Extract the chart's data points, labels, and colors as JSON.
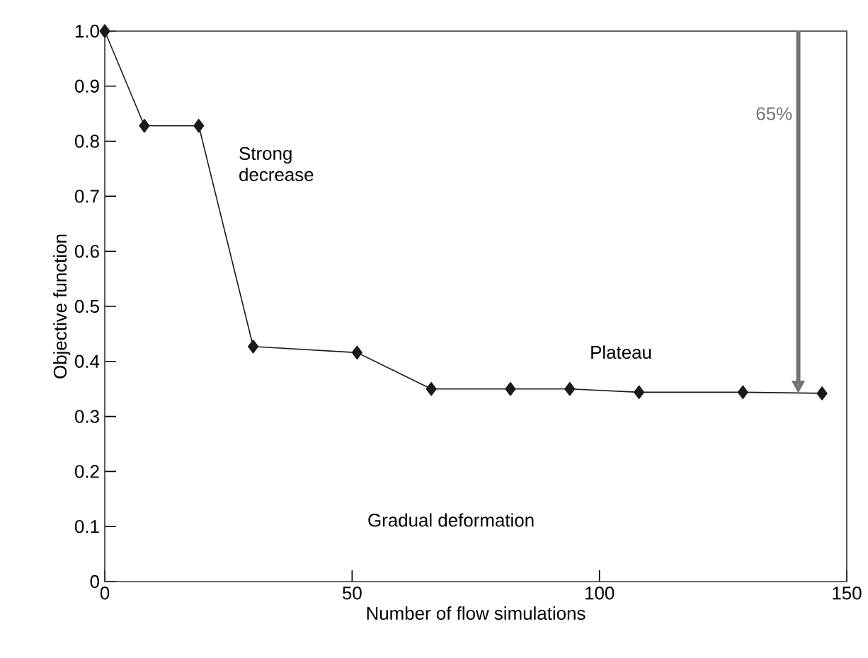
{
  "chart_data": {
    "type": "line",
    "xlabel": "Number of flow simulations",
    "ylabel": "Objective function",
    "x": [
      0,
      8,
      19,
      30,
      51,
      66,
      82,
      94,
      108,
      129,
      145
    ],
    "series": [
      {
        "color": "#1a1a1a",
        "values": [
          1.0,
          0.828,
          0.828,
          0.427,
          0.416,
          0.35,
          0.35,
          0.35,
          0.344,
          0.344,
          0.342
        ]
      }
    ],
    "marker": "diamond",
    "line_style": "solid",
    "grid": false,
    "xlim": [
      0,
      150
    ],
    "xticks": [
      0,
      50,
      100,
      150
    ],
    "ylim": [
      0,
      1.0
    ],
    "yticks": [
      0,
      0.1,
      0.2,
      0.3,
      0.4,
      0.5,
      0.6,
      0.7,
      0.8,
      0.9,
      {
        "value": 1.0,
        "label": "1.0"
      }
    ],
    "annotations": [
      "Strong decrease",
      "Plateau",
      "Gradual deformation",
      "65%"
    ]
  }
}
